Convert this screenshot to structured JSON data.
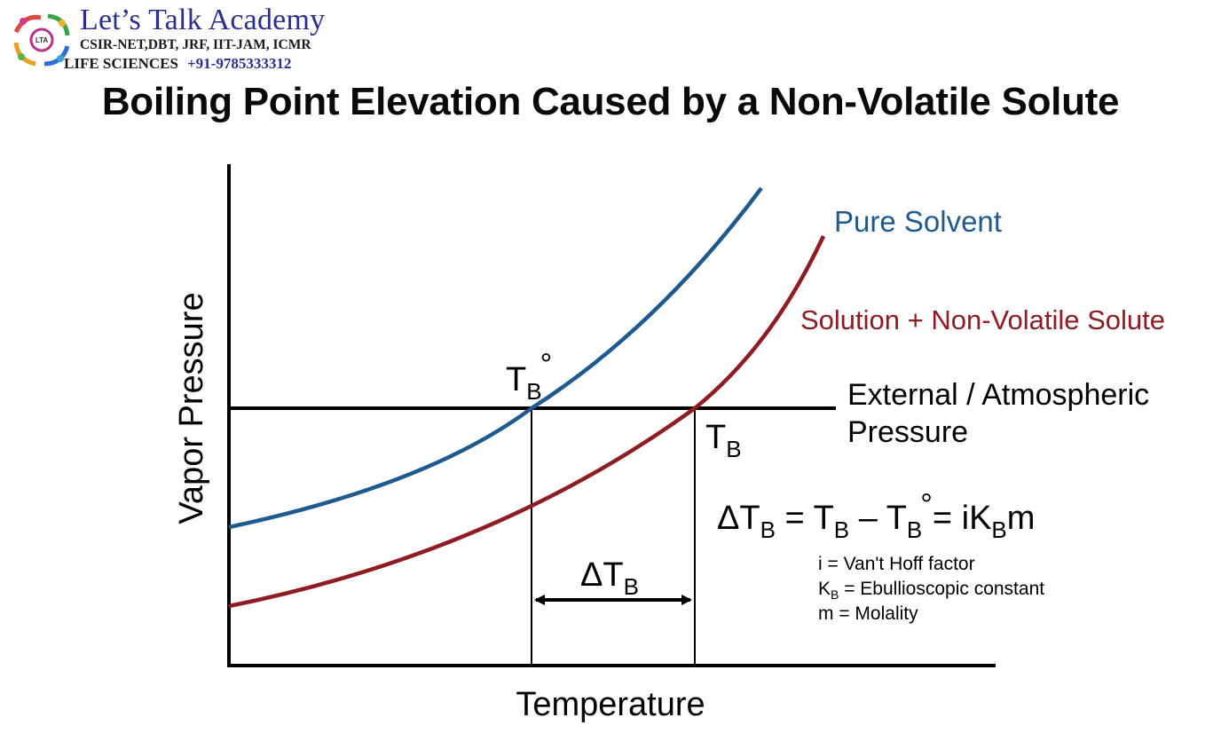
{
  "logo": {
    "title": "Let’s Talk Academy",
    "line1": "CSIR-NET,DBT, JRF, IIT-JAM, ICMR",
    "line2": "LIFE SCIENCES",
    "phone": "+91-9785333312",
    "badge_text": "LTA"
  },
  "title": "Boiling Point Elevation Caused by a Non-Volatile Solute",
  "axes": {
    "x_label": "Temperature",
    "y_label": "Vapor Pressure"
  },
  "curves": {
    "pure_solvent": {
      "label": "Pure Solvent",
      "color": "#1f5a8f"
    },
    "solution": {
      "label": "Solution + Non-Volatile Solute",
      "color": "#8e1c22"
    }
  },
  "pressure_line": {
    "label_line1": "External / Atmospheric",
    "label_line2": "Pressure"
  },
  "points": {
    "tb0": {
      "main": "T",
      "sub": "B",
      "sup": "°"
    },
    "tb": {
      "main": "T",
      "sub": "B"
    }
  },
  "delta": {
    "main": "ΔT",
    "sub": "B"
  },
  "equation": {
    "p1": "ΔT",
    "s1": "B",
    "p2": " = T",
    "s2": "B",
    "p3": " – T",
    "s3": "B",
    "sup3": "°",
    "p4": "= iK",
    "s4": "B",
    "p5": "m"
  },
  "legend": {
    "i_line": "i = Van't Hoff factor",
    "k_main": "K",
    "k_sub": "B",
    "k_rest": " = Ebullioscopic constant",
    "m_line": "m = Molality"
  }
}
